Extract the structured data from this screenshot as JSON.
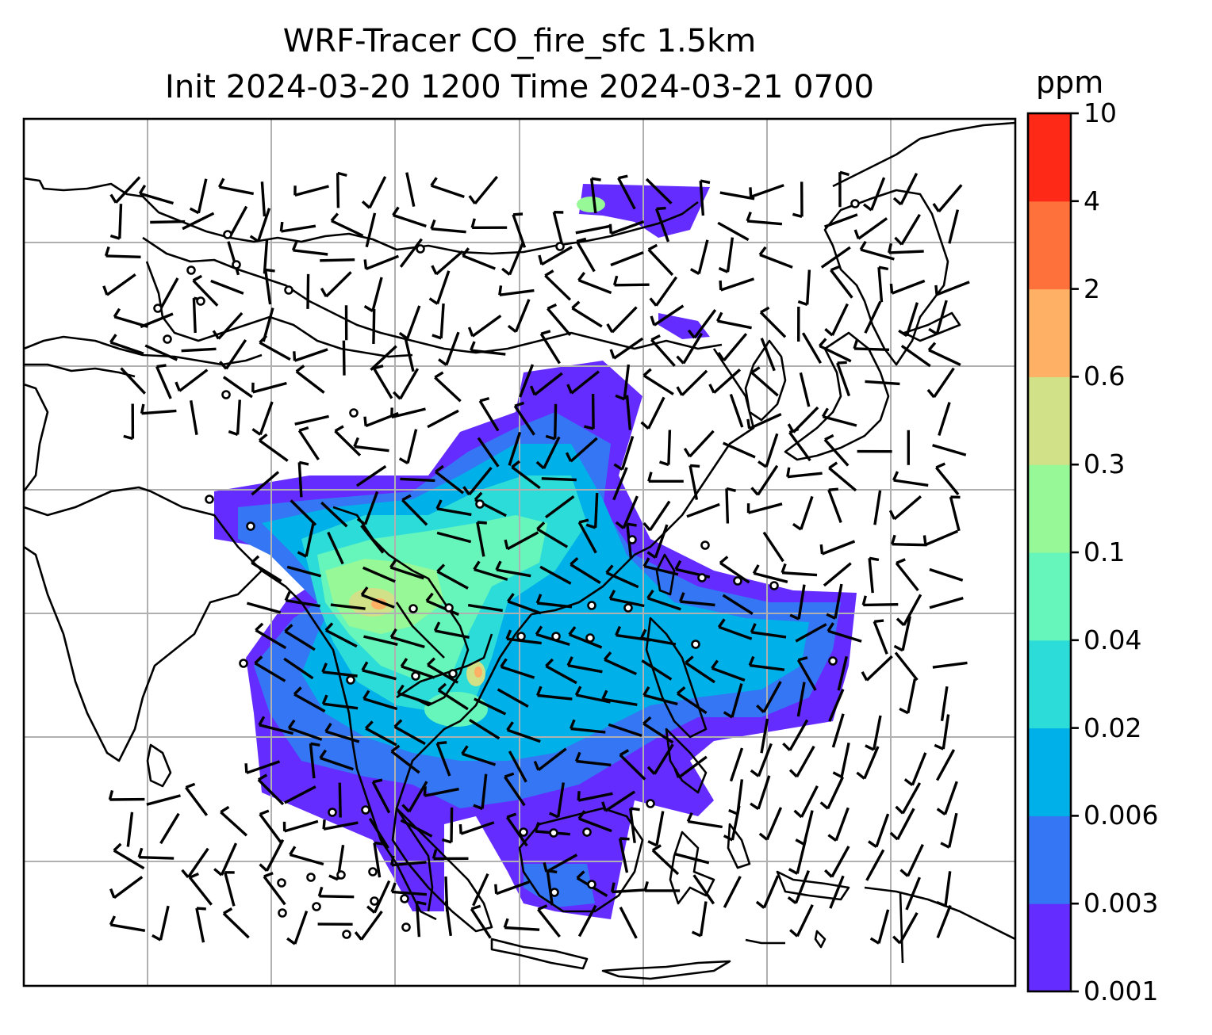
{
  "title": {
    "line1": "WRF-Tracer CO_fire_sfc 1.5km",
    "line2": "Init 2024-03-20 1200 Time 2024-03-21 0700"
  },
  "colorbar": {
    "unit": "ppm",
    "levels": [
      "0.001",
      "0.003",
      "0.006",
      "0.02",
      "0.04",
      "0.1",
      "0.3",
      "0.6",
      "2",
      "4",
      "10"
    ],
    "colors": [
      "#652cff",
      "#3476f4",
      "#00b0e8",
      "#2cdcd8",
      "#66f6bc",
      "#96f896",
      "#d0e187",
      "#feb064",
      "#fe713a",
      "#ff2917"
    ]
  },
  "map": {
    "field": "CO_fire_sfc",
    "gridlines": true,
    "overlays": [
      "coastlines",
      "country-borders",
      "wind-barbs",
      "calm-wind-circles"
    ]
  }
}
